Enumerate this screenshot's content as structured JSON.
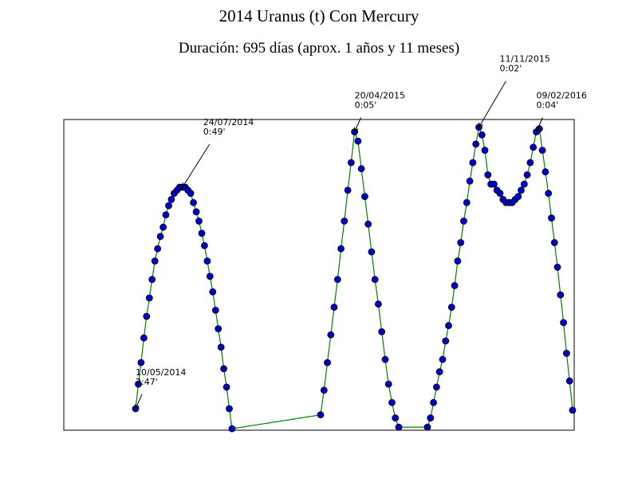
{
  "chart_data": {
    "type": "line",
    "title": "2014 Uranus (t) Con Mercury",
    "subtitle": "Duración: 695 días (aprox. 1 años y 11 meses)",
    "xlabel": "",
    "ylabel": "",
    "grid": false,
    "colors": {
      "line": "#008000",
      "marker_fill": "#0000cc",
      "marker_edge": "#000000"
    },
    "series": [
      {
        "values": [
          0.07,
          0.15,
          0.22,
          0.3,
          0.37,
          0.43,
          0.49,
          0.55,
          0.59,
          0.63,
          0.66,
          0.7,
          0.73,
          0.75,
          0.77,
          0.78,
          0.79,
          0.79,
          0.79,
          0.78,
          0.77,
          0.74,
          0.71,
          0.68,
          0.64,
          0.6,
          0.55,
          0.5,
          0.45,
          0.39,
          0.33,
          0.27,
          0.2,
          0.14,
          0.07,
          0.005,
          0.05,
          0.13,
          0.22,
          0.31,
          0.4,
          0.49,
          0.59,
          0.68,
          0.78,
          0.87,
          0.97,
          0.94,
          0.85,
          0.76,
          0.67,
          0.58,
          0.49,
          0.41,
          0.32,
          0.23,
          0.15,
          0.09,
          0.04,
          0.01,
          0.01,
          0.04,
          0.09,
          0.14,
          0.19,
          0.23,
          0.29,
          0.34,
          0.4,
          0.47,
          0.55,
          0.61,
          0.68,
          0.74,
          0.81,
          0.87,
          0.93,
          0.985,
          0.96,
          0.91,
          0.83,
          0.8,
          0.8,
          0.78,
          0.77,
          0.75,
          0.74,
          0.74,
          0.74,
          0.75,
          0.76,
          0.78,
          0.8,
          0.83,
          0.87,
          0.92,
          0.97,
          0.98,
          0.91,
          0.84,
          0.77,
          0.69,
          0.61,
          0.53,
          0.44,
          0.35,
          0.25,
          0.16,
          0.065
        ]
      }
    ],
    "annotations": [
      {
        "label": "10/05/2014\n2:47'",
        "point_index": 0
      },
      {
        "label": "24/07/2014\n0:49'",
        "point_index": 17
      },
      {
        "label": "20/04/2015\n0:05'",
        "point_index": 46
      },
      {
        "label": "11/11/2015\n0:02'",
        "point_index": 77
      },
      {
        "label": "09/02/2016\n0:04'",
        "point_index": 96
      }
    ]
  }
}
